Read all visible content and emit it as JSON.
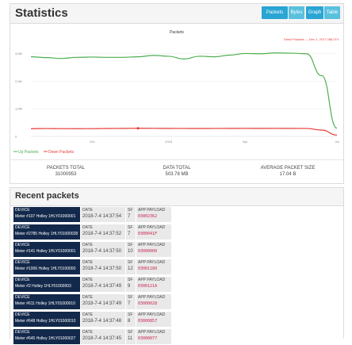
{
  "statistics": {
    "title": "Statistics",
    "buttons": [
      {
        "label": "Packets",
        "active": true
      },
      {
        "label": "Bytes",
        "active": false
      },
      {
        "label": "Graph",
        "active": true
      },
      {
        "label": "Table",
        "active": false
      }
    ],
    "summary": [
      {
        "label": "PACKETS TOTAL",
        "value": "31000953"
      },
      {
        "label": "DATA TOTAL",
        "value": "503.78 MB"
      },
      {
        "label": "AVERAGE PACKET SIZE",
        "value": "17.04 B"
      }
    ]
  },
  "chart_data": {
    "type": "line",
    "title": "Packets",
    "tooltip": "Direct Packets — Dec 1, 2017   286,074",
    "yticks": [
      "3,0M",
      "2,0M",
      "1,0M",
      "0"
    ],
    "xticks": [
      "Oct",
      "2018",
      "Apr",
      "Jul"
    ],
    "ylim": [
      0,
      3500000
    ],
    "x": [
      0,
      1,
      2,
      3,
      4,
      5,
      6,
      7,
      8,
      9,
      10,
      11,
      12,
      13,
      14,
      15,
      16,
      17,
      18,
      19,
      20
    ],
    "series": [
      {
        "name": "Up Packets",
        "color": "#4caf50",
        "values": [
          2880000,
          2850000,
          2820000,
          2860000,
          2870000,
          2860000,
          2860000,
          2880000,
          2930000,
          2900000,
          2800000,
          2900000,
          2880000,
          2940000,
          3000000,
          2990000,
          3020000,
          3010000,
          2990000,
          2200000,
          300000
        ]
      },
      {
        "name": "Down Packets",
        "color": "#e53935",
        "values": [
          280000,
          285000,
          282000,
          280000,
          282000,
          286000,
          290000,
          295000,
          292000,
          290000,
          288000,
          286000,
          288000,
          290000,
          292000,
          290000,
          292000,
          290000,
          288000,
          230000,
          50000
        ]
      }
    ],
    "legend": [
      "Up Packets",
      "Down Packets"
    ]
  },
  "recent": {
    "title": "Recent packets",
    "headers": {
      "device": "DEVICE",
      "date": "DATE",
      "sf": "SF",
      "payload": "APP PAYLOAD"
    },
    "rows": [
      {
        "device": "Meter #107 Holley 1HLY01000001",
        "date": "2018-7-4 14:37:54",
        "sf": "7",
        "payload": "03002362"
      },
      {
        "device": "Meter #2785 Holley 1HLY01000028",
        "date": "2018-7-4 14:37:52",
        "sf": "7",
        "payload": "0300041F"
      },
      {
        "device": "Meter #141 Holley 1HLY01000001",
        "date": "2018-7-4 14:37:50",
        "sf": "10",
        "payload": "03000000"
      },
      {
        "device": "Meter #1006 Holley 1HLY0100000",
        "date": "2018-7-4 14:37:50",
        "sf": "12",
        "payload": "03001180"
      },
      {
        "device": "Meter #2 Holley 1HLY01000003",
        "date": "2018-7-4 14:37:49",
        "sf": "9",
        "payload": "0300121A"
      },
      {
        "device": "Meter #611 Holley 1HLY01000010",
        "date": "2018-7-4 14:37:49",
        "sf": "7",
        "payload": "03000028"
      },
      {
        "device": "Meter #648 Holley 1HLY01000010",
        "date": "2018-7-4 14:37:48",
        "sf": "8",
        "payload": "03000857"
      },
      {
        "device": "Meter #645 Holley 1HLY01000027",
        "date": "2018-7-4 14:37:45",
        "sf": "11",
        "payload": "03000077"
      }
    ]
  }
}
